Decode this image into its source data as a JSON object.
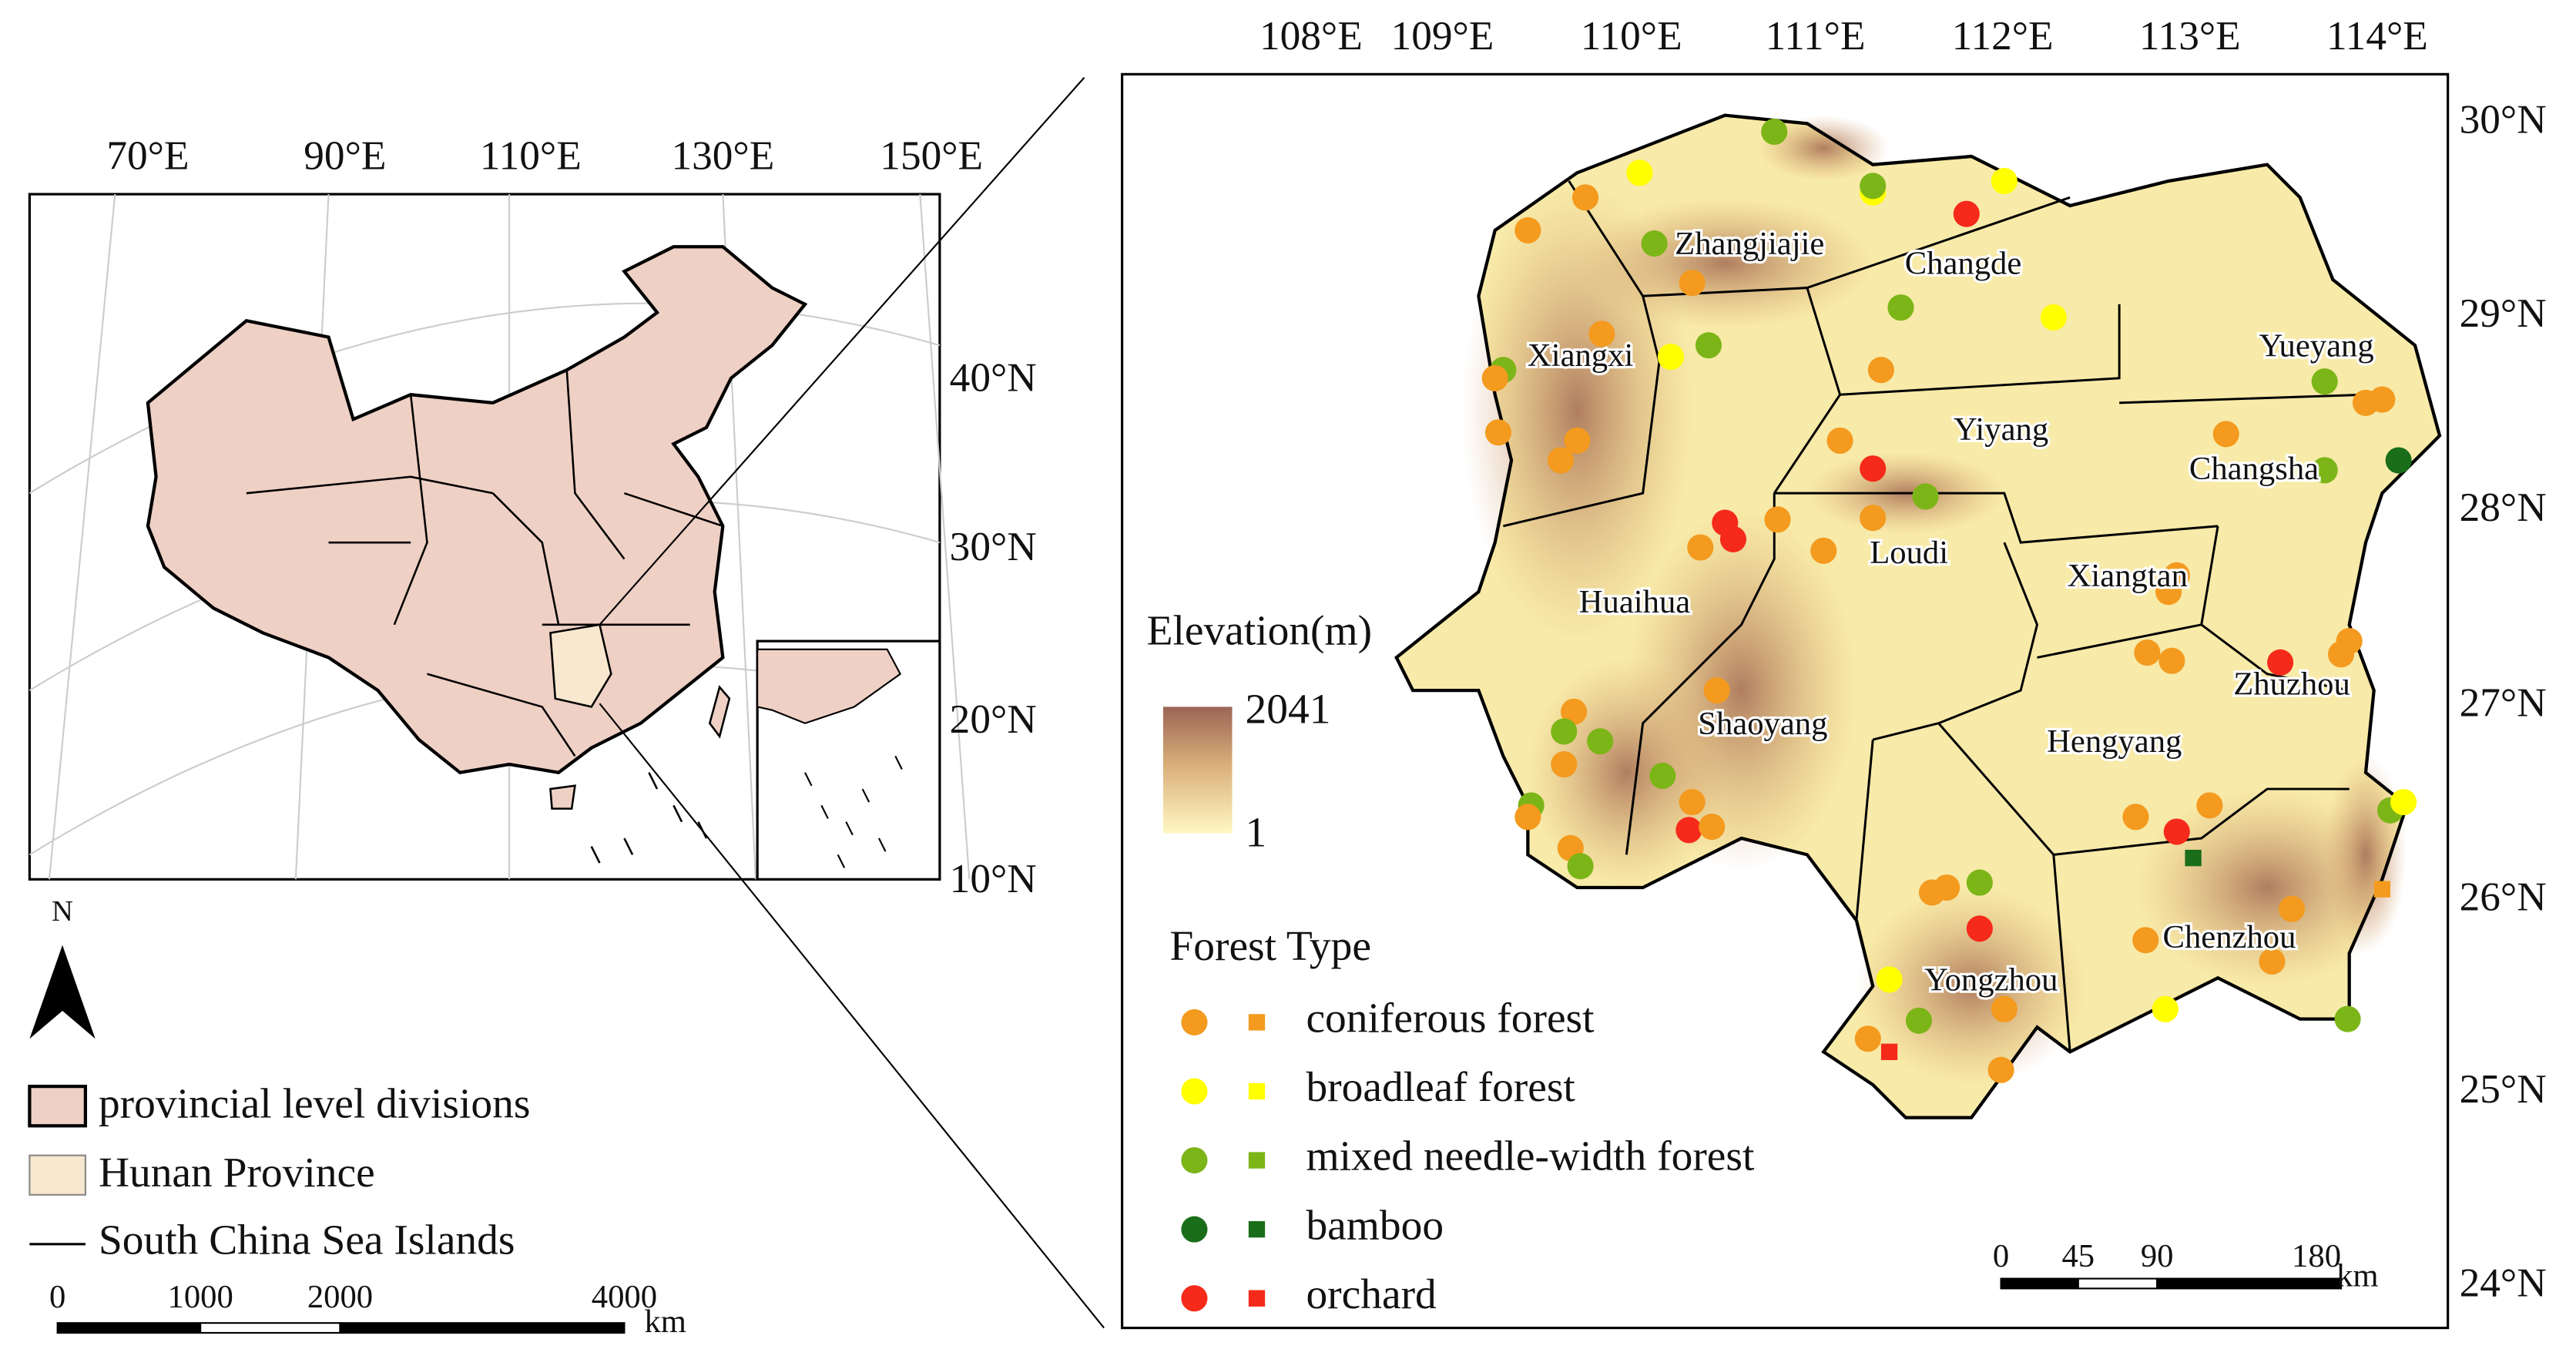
{
  "overview_map": {
    "lon_labels": [
      "70°E",
      "90°E",
      "110°E",
      "130°E",
      "150°E"
    ],
    "lat_labels": [
      "40°N",
      "30°N",
      "20°N",
      "10°N"
    ],
    "north_label": "N",
    "legend": [
      {
        "label": "provincial level divisions",
        "color": "#efd0c5"
      },
      {
        "label": "Hunan Province",
        "color": "#f8e8cf"
      },
      {
        "label": "South China Sea Islands"
      }
    ],
    "scale_bar": {
      "ticks": [
        "0",
        "1000",
        "2000",
        "4000"
      ],
      "unit": "km"
    }
  },
  "hunan_map": {
    "lon_labels": [
      "108°E",
      "109°E",
      "110°E",
      "111°E",
      "112°E",
      "113°E",
      "114°E"
    ],
    "lat_labels": [
      "30°N",
      "29°N",
      "28°N",
      "27°N",
      "26°N",
      "25°N",
      "24°N"
    ],
    "cities": [
      "Zhangjiajie",
      "Changde",
      "Xiangxi",
      "Yueyang",
      "Yiyang",
      "Changsha",
      "Loudi",
      "Xiangtan",
      "Huaihua",
      "Zhuzhou",
      "Shaoyang",
      "Hengyang",
      "Chenzhou",
      "Yongzhou"
    ],
    "elevation_legend": {
      "title": "Elevation(m)",
      "max": "2041",
      "min": "1"
    },
    "forest_type_legend": {
      "title": "Forest Type",
      "items": [
        {
          "label": "coniferous forest",
          "color": "#f39a1f"
        },
        {
          "label": "broadleaf forest",
          "color": "#ffff00"
        },
        {
          "label": "mixed needle-width forest",
          "color": "#7cb518"
        },
        {
          "label": "bamboo",
          "color": "#1a6e1a"
        },
        {
          "label": "orchard",
          "color": "#f52a1a"
        }
      ]
    },
    "scale_bar": {
      "ticks": [
        "0",
        "45",
        "90",
        "180"
      ],
      "unit": "km"
    }
  }
}
